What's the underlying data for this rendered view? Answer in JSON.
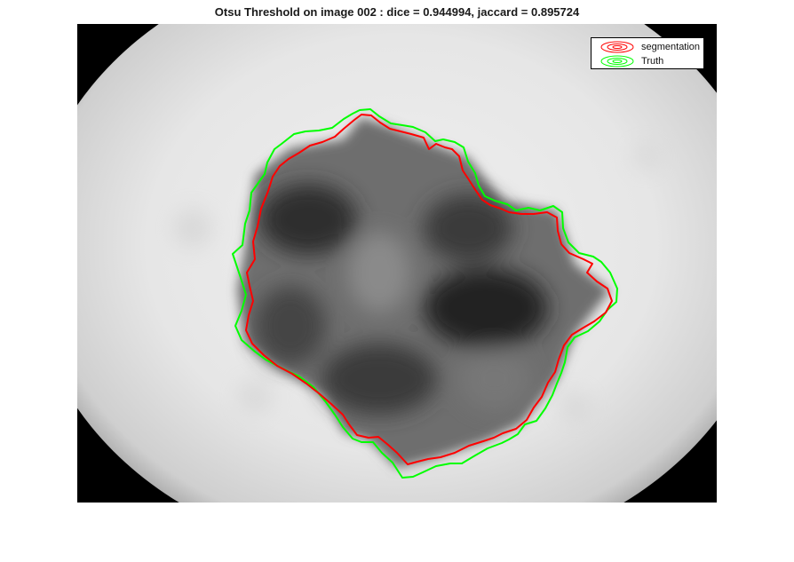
{
  "figure": {
    "title": "Otsu Threshold on image 002 : dice = 0.944994, jaccard = 0.895724"
  },
  "legend": {
    "entries": [
      {
        "label": "segmentation",
        "color": "#ff0000"
      },
      {
        "label": "Truth",
        "color": "#00ff00"
      }
    ]
  },
  "colors": {
    "segmentation": "#ff0000",
    "truth": "#00ff00",
    "background": "#000000"
  }
}
